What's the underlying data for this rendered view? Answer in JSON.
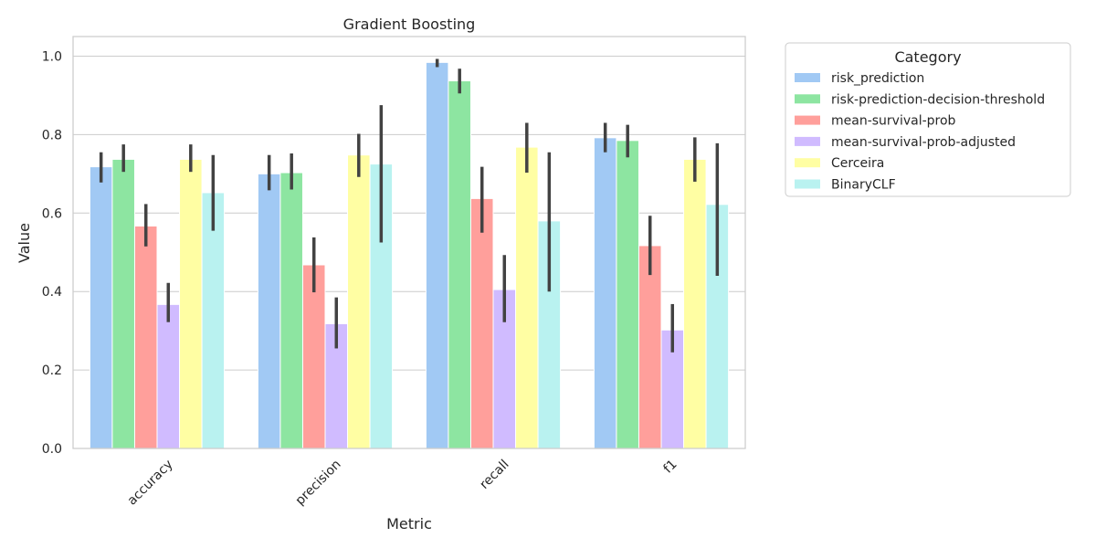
{
  "chart_data": {
    "type": "bar",
    "title": "Gradient Boosting",
    "xlabel": "Metric",
    "ylabel": "Value",
    "ylim": [
      0,
      1.05
    ],
    "yticks": [
      "0.0",
      "0.2",
      "0.4",
      "0.6",
      "0.8",
      "1.0"
    ],
    "categories": [
      "accuracy",
      "precision",
      "recall",
      "f1"
    ],
    "grid": true,
    "legend": {
      "title": "Category",
      "placement": "outside-top-right"
    },
    "series": [
      {
        "name": "risk_prediction",
        "color": "#a1c9f4",
        "values": [
          0.718,
          0.7,
          0.984,
          0.792
        ],
        "ci": [
          [
            0.678,
            0.755
          ],
          [
            0.658,
            0.748
          ],
          [
            0.972,
            0.993
          ],
          [
            0.755,
            0.83
          ]
        ]
      },
      {
        "name": "risk-prediction-decision-threshold",
        "color": "#8de5a1",
        "values": [
          0.737,
          0.703,
          0.937,
          0.785
        ],
        "ci": [
          [
            0.705,
            0.775
          ],
          [
            0.66,
            0.752
          ],
          [
            0.905,
            0.968
          ],
          [
            0.742,
            0.825
          ]
        ]
      },
      {
        "name": "mean-survival-prob",
        "color": "#ff9f9b",
        "values": [
          0.567,
          0.468,
          0.637,
          0.517
        ],
        "ci": [
          [
            0.515,
            0.623
          ],
          [
            0.398,
            0.538
          ],
          [
            0.55,
            0.718
          ],
          [
            0.442,
            0.593
          ]
        ]
      },
      {
        "name": "mean-survival-prob-adjusted",
        "color": "#d0bbff",
        "values": [
          0.367,
          0.318,
          0.405,
          0.302
        ],
        "ci": [
          [
            0.322,
            0.422
          ],
          [
            0.255,
            0.385
          ],
          [
            0.322,
            0.493
          ],
          [
            0.245,
            0.368
          ]
        ]
      },
      {
        "name": "Cerceira",
        "color": "#fffea3",
        "values": [
          0.737,
          0.748,
          0.768,
          0.737
        ],
        "ci": [
          [
            0.705,
            0.775
          ],
          [
            0.692,
            0.802
          ],
          [
            0.703,
            0.83
          ],
          [
            0.68,
            0.793
          ]
        ]
      },
      {
        "name": "BinaryCLF",
        "color": "#b9f2f0",
        "values": [
          0.652,
          0.725,
          0.58,
          0.622
        ],
        "ci": [
          [
            0.555,
            0.748
          ],
          [
            0.525,
            0.875
          ],
          [
            0.4,
            0.755
          ],
          [
            0.44,
            0.778
          ]
        ]
      }
    ]
  }
}
